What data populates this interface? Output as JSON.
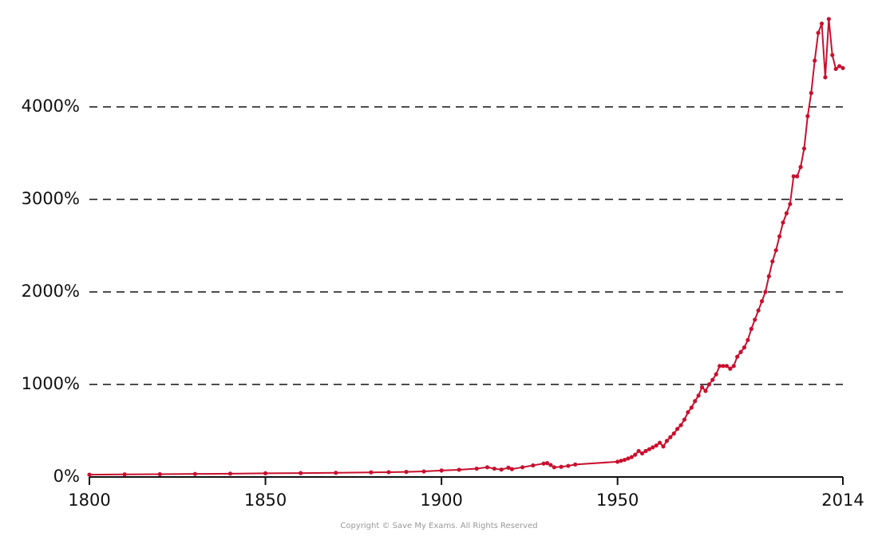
{
  "chart_data": {
    "type": "line",
    "color": "#c8102e",
    "x": [
      1800,
      1810,
      1820,
      1830,
      1840,
      1850,
      1860,
      1870,
      1880,
      1885,
      1890,
      1895,
      1900,
      1905,
      1910,
      1913,
      1915,
      1917,
      1919,
      1920,
      1923,
      1926,
      1929,
      1930,
      1931,
      1932,
      1934,
      1936,
      1938,
      1950,
      1951,
      1952,
      1953,
      1954,
      1955,
      1956,
      1957,
      1958,
      1959,
      1960,
      1961,
      1962,
      1963,
      1964,
      1965,
      1966,
      1967,
      1968,
      1969,
      1970,
      1971,
      1972,
      1973,
      1974,
      1975,
      1976,
      1977,
      1978,
      1979,
      1980,
      1981,
      1982,
      1983,
      1984,
      1985,
      1986,
      1987,
      1988,
      1989,
      1990,
      1991,
      1992,
      1993,
      1994,
      1995,
      1996,
      1997,
      1998,
      1999,
      2000,
      2001,
      2002,
      2003,
      2004,
      2005,
      2006,
      2007,
      2008,
      2009,
      2010,
      2011,
      2012,
      2013,
      2014
    ],
    "values": [
      25,
      28,
      30,
      33,
      36,
      40,
      42,
      45,
      50,
      52,
      55,
      60,
      70,
      78,
      90,
      105,
      90,
      80,
      100,
      85,
      105,
      125,
      145,
      150,
      130,
      105,
      110,
      120,
      135,
      165,
      175,
      185,
      200,
      215,
      240,
      280,
      255,
      280,
      300,
      320,
      340,
      370,
      330,
      390,
      430,
      470,
      520,
      560,
      620,
      700,
      750,
      820,
      880,
      970,
      930,
      1000,
      1050,
      1110,
      1200,
      1200,
      1200,
      1170,
      1200,
      1300,
      1350,
      1400,
      1480,
      1600,
      1700,
      1800,
      1900,
      2000,
      2170,
      2330,
      2450,
      2600,
      2750,
      2850,
      2950,
      3250,
      3250,
      3350,
      3550,
      3900,
      4150,
      4500,
      4800,
      4900,
      4320,
      4950,
      4560,
      4410,
      4440,
      4420
    ],
    "xlim": [
      1800,
      2014
    ],
    "xticks": [
      1800,
      1850,
      1900,
      1950,
      2014
    ],
    "ylim": [
      0,
      5000
    ],
    "yticks": [
      {
        "value": 0,
        "label": "0%"
      },
      {
        "value": 1000,
        "label": "1000%"
      },
      {
        "value": 2000,
        "label": "2000%"
      },
      {
        "value": 3000,
        "label": "3000%"
      },
      {
        "value": 4000,
        "label": "4000%"
      }
    ],
    "grid": true,
    "note": "Copyright © Save My Exams. All Rights Reserved"
  }
}
